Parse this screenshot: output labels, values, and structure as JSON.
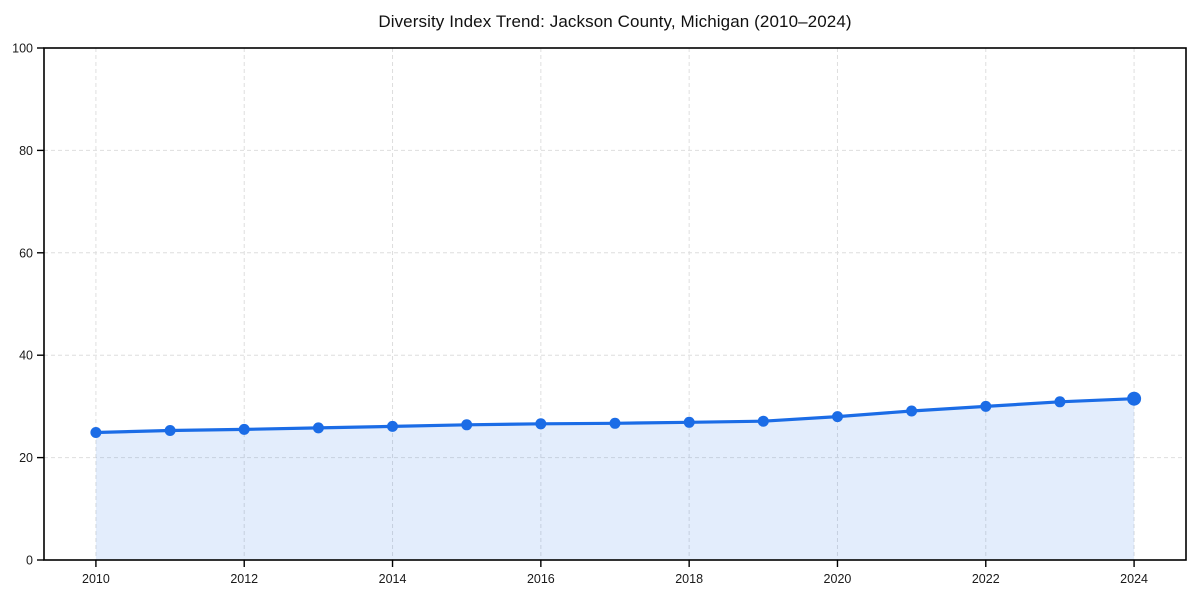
{
  "chart_data": {
    "type": "area",
    "title": "Diversity Index Trend: Jackson County, Michigan (2010–2024)",
    "x": [
      2010,
      2011,
      2012,
      2013,
      2014,
      2015,
      2016,
      2017,
      2018,
      2019,
      2020,
      2021,
      2022,
      2023,
      2024
    ],
    "values": [
      24.9,
      25.3,
      25.5,
      25.8,
      26.1,
      26.4,
      26.6,
      26.7,
      26.9,
      27.1,
      28.0,
      29.1,
      30.0,
      30.9,
      31.5
    ],
    "xlabel": "",
    "ylabel": "",
    "ylim": [
      0,
      100
    ],
    "yticks": [
      0,
      20,
      40,
      60,
      80,
      100
    ],
    "xticks": [
      2010,
      2012,
      2014,
      2016,
      2018,
      2020,
      2022,
      2024
    ],
    "grid": "dashed",
    "legend": "none",
    "colors": {
      "line": "#1b6ce6",
      "marker": "#1b6ce6",
      "fill": "rgba(27,108,230,0.12)",
      "grid": "#dedede",
      "spine": "#000000",
      "text": "#1a1a1a"
    }
  }
}
